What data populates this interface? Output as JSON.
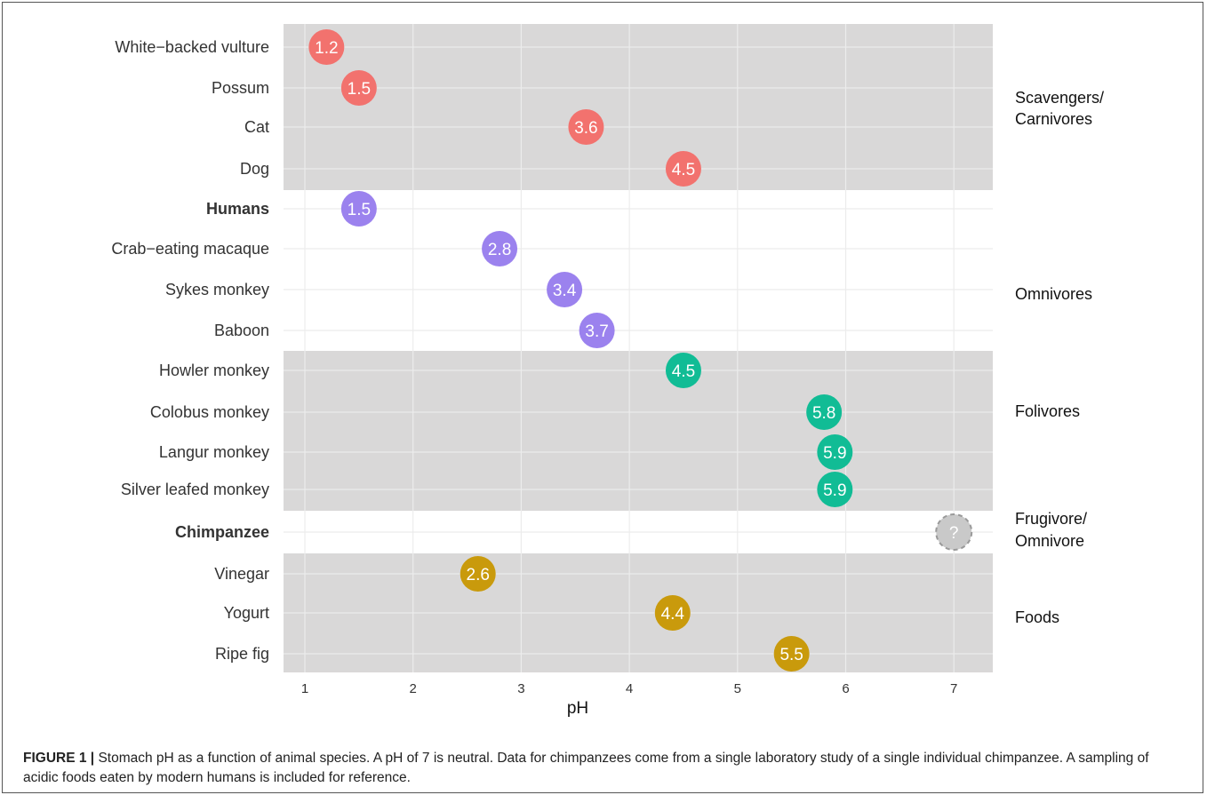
{
  "chart_data": {
    "type": "scatter",
    "xlabel": "pH",
    "xlim": [
      0.8,
      7.35
    ],
    "xticks": [
      1,
      2,
      3,
      4,
      5,
      6,
      7
    ],
    "grid": true,
    "groups": [
      {
        "label": "Scavengers/\nCarnivores",
        "shaded": true,
        "color": "#f2726e",
        "rows": [
          {
            "name": "White−backed vulture",
            "value": 1.2,
            "label": "1.2"
          },
          {
            "name": "Possum",
            "value": 1.5,
            "label": "1.5"
          },
          {
            "name": "Cat",
            "value": 3.6,
            "label": "3.6"
          },
          {
            "name": "Dog",
            "value": 4.5,
            "label": "4.5"
          }
        ]
      },
      {
        "label": "Omnivores",
        "shaded": false,
        "color": "#9b82ee",
        "rows": [
          {
            "name": "Humans",
            "value": 1.5,
            "label": "1.5",
            "bold": true
          },
          {
            "name": "Crab−eating macaque",
            "value": 2.8,
            "label": "2.8"
          },
          {
            "name": "Sykes monkey",
            "value": 3.4,
            "label": "3.4"
          },
          {
            "name": "Baboon",
            "value": 3.7,
            "label": "3.7"
          }
        ]
      },
      {
        "label": "Folivores",
        "shaded": true,
        "color": "#11bc95",
        "rows": [
          {
            "name": "Howler monkey",
            "value": 4.5,
            "label": "4.5"
          },
          {
            "name": "Colobus monkey",
            "value": 5.8,
            "label": "5.8"
          },
          {
            "name": "Langur monkey",
            "value": 5.9,
            "label": "5.9"
          },
          {
            "name": "Silver leafed monkey",
            "value": 5.9,
            "label": "5.9"
          }
        ]
      },
      {
        "label": "Frugivore/\nOmnivore",
        "shaded": false,
        "color": "#c9c9c9",
        "rows": [
          {
            "name": "Chimpanzee",
            "value": 7.0,
            "label": "?",
            "bold": true,
            "unknown": true
          }
        ]
      },
      {
        "label": "Foods",
        "shaded": true,
        "color": "#c99a0c",
        "rows": [
          {
            "name": "Vinegar",
            "value": 2.6,
            "label": "2.6"
          },
          {
            "name": "Yogurt",
            "value": 4.4,
            "label": "4.4"
          },
          {
            "name": "Ripe fig",
            "value": 5.5,
            "label": "5.5"
          }
        ]
      }
    ]
  },
  "caption": {
    "lead": "FIGURE 1 |",
    "text": " Stomach pH as a function of animal species. A pH of 7 is neutral. Data for chimpanzees come from a single laboratory study of a single individual chimpanzee. A sampling of acidic foods eaten by modern humans is included for reference."
  }
}
